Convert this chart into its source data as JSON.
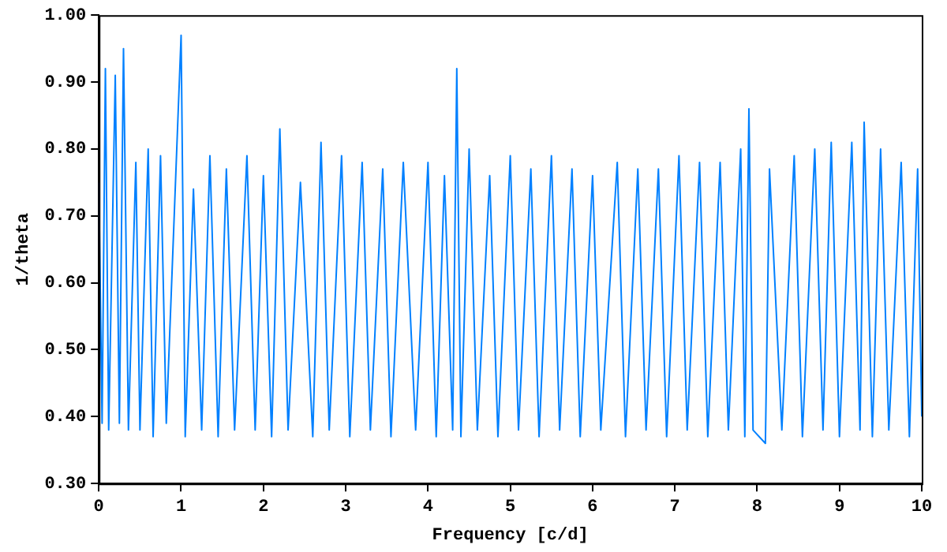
{
  "chart_data": {
    "type": "line",
    "xlabel": "Frequency [c/d]",
    "ylabel": "1/theta",
    "x": [
      0,
      0.04,
      0.08,
      0.12,
      0.2,
      0.25,
      0.3,
      0.36,
      0.45,
      0.5,
      0.6,
      0.66,
      0.75,
      0.82,
      1.0,
      1.05,
      1.15,
      1.25,
      1.35,
      1.45,
      1.55,
      1.65,
      1.8,
      1.9,
      2.0,
      2.1,
      2.2,
      2.3,
      2.45,
      2.6,
      2.7,
      2.8,
      2.95,
      3.05,
      3.2,
      3.3,
      3.45,
      3.55,
      3.7,
      3.85,
      4.0,
      4.1,
      4.2,
      4.3,
      4.35,
      4.4,
      4.5,
      4.6,
      4.75,
      4.85,
      5.0,
      5.1,
      5.25,
      5.35,
      5.5,
      5.6,
      5.75,
      5.85,
      6.0,
      6.1,
      6.3,
      6.4,
      6.55,
      6.65,
      6.8,
      6.9,
      7.05,
      7.15,
      7.3,
      7.4,
      7.55,
      7.65,
      7.8,
      7.85,
      7.9,
      7.95,
      8.1,
      8.15,
      8.3,
      8.45,
      8.55,
      8.7,
      8.8,
      8.9,
      9.0,
      9.15,
      9.25,
      9.3,
      9.4,
      9.5,
      9.6,
      9.75,
      9.85,
      9.95,
      10.0
    ],
    "series": [
      {
        "color": "#0080ff",
        "values": [
          0.75,
          0.39,
          0.92,
          0.38,
          0.91,
          0.39,
          0.95,
          0.38,
          0.78,
          0.38,
          0.8,
          0.37,
          0.79,
          0.39,
          0.97,
          0.37,
          0.74,
          0.38,
          0.79,
          0.37,
          0.77,
          0.38,
          0.79,
          0.38,
          0.76,
          0.37,
          0.83,
          0.38,
          0.75,
          0.37,
          0.81,
          0.38,
          0.79,
          0.37,
          0.78,
          0.38,
          0.77,
          0.37,
          0.78,
          0.38,
          0.78,
          0.37,
          0.76,
          0.38,
          0.92,
          0.37,
          0.8,
          0.38,
          0.76,
          0.37,
          0.79,
          0.38,
          0.77,
          0.37,
          0.79,
          0.38,
          0.77,
          0.37,
          0.76,
          0.38,
          0.78,
          0.37,
          0.77,
          0.38,
          0.77,
          0.37,
          0.79,
          0.38,
          0.78,
          0.37,
          0.78,
          0.38,
          0.8,
          0.37,
          0.86,
          0.38,
          0.36,
          0.77,
          0.38,
          0.79,
          0.37,
          0.8,
          0.38,
          0.81,
          0.37,
          0.81,
          0.38,
          0.84,
          0.37,
          0.8,
          0.38,
          0.78,
          0.37,
          0.77,
          0.4
        ]
      }
    ],
    "xlim": [
      0,
      10
    ],
    "xticks": [
      0,
      1,
      2,
      3,
      4,
      5,
      6,
      7,
      8,
      9,
      10
    ],
    "ylim": [
      0.3,
      1.0
    ],
    "yticks": [
      {
        "value": 0.3,
        "label": "0.30"
      },
      {
        "value": 0.4,
        "label": "0.40"
      },
      {
        "value": 0.5,
        "label": "0.50"
      },
      {
        "value": 0.6,
        "label": "0.60"
      },
      {
        "value": 0.7,
        "label": "0.70"
      },
      {
        "value": 0.8,
        "label": "0.80"
      },
      {
        "value": 0.9,
        "label": "0.90"
      },
      {
        "value": 1.0,
        "label": "1.00"
      }
    ],
    "grid": false,
    "legend": false,
    "marker": "none",
    "line_style": "solid"
  }
}
